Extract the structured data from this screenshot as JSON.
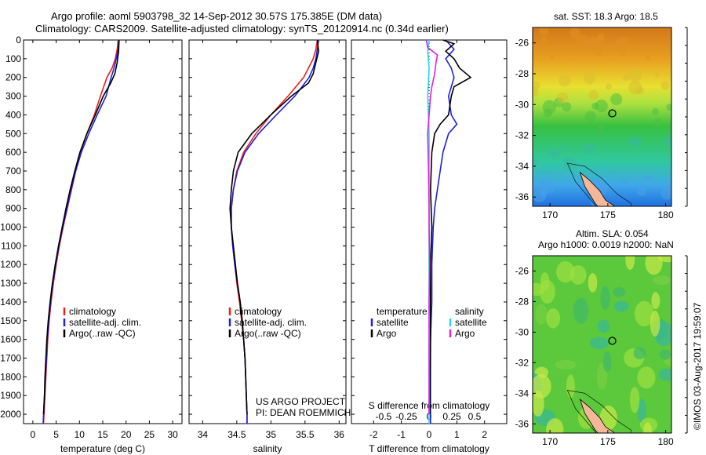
{
  "title_line1": "Argo profile: aoml 5903798_32 14-Sep-2012 30.57S 175.385E (DM data)",
  "title_line2": "Climatology: CARS2009. Satellite-adjusted climatology: synTS_20120914.nc (0.34d earlier)",
  "project_line1": "US ARGO PROJECT",
  "project_line2": "PI: DEAN ROEMMICH",
  "map1_title": "sat. SST: 18.3 Argo: 18.5",
  "map2_title1": "Altim. SLA: 0.054",
  "map2_title2": "Argo h1000: 0.0019 h2000: NaN",
  "credit": "©IMOS 03-Aug-2017 19:59:07",
  "colors": {
    "climatology": "#e8201c",
    "satellite": "#1c22e0",
    "argo": "#000000",
    "sal_sat": "#28d8e8",
    "sal_argo": "#e020e0"
  },
  "chart_data": [
    {
      "type": "line",
      "name": "temperature",
      "xlabel": "temperature (deg C)",
      "xlim": [
        -2,
        32
      ],
      "xticks": [
        0,
        5,
        10,
        15,
        20,
        25,
        30
      ],
      "ylim": [
        0,
        2050
      ],
      "yticks": [
        0,
        100,
        200,
        300,
        400,
        500,
        600,
        700,
        800,
        900,
        1000,
        1100,
        1200,
        1300,
        1400,
        1500,
        1600,
        1700,
        1800,
        1900,
        2000
      ],
      "y_inverted": true,
      "legend": [
        "climatology",
        "satellite-adj. clim.",
        "Argo(..raw -QC)"
      ],
      "series": [
        {
          "name": "climatology",
          "color": "#e8201c",
          "points": [
            [
              18.3,
              0
            ],
            [
              18.1,
              50
            ],
            [
              17.7,
              100
            ],
            [
              17.0,
              150
            ],
            [
              15.9,
              200
            ],
            [
              14.5,
              300
            ],
            [
              13.2,
              400
            ],
            [
              11.6,
              500
            ],
            [
              10.2,
              600
            ],
            [
              9.2,
              700
            ],
            [
              8.3,
              800
            ],
            [
              7.4,
              900
            ],
            [
              6.5,
              1000
            ],
            [
              5.7,
              1100
            ],
            [
              5.0,
              1200
            ],
            [
              4.4,
              1300
            ],
            [
              3.9,
              1400
            ],
            [
              3.5,
              1500
            ],
            [
              3.2,
              1600
            ],
            [
              3.0,
              1700
            ],
            [
              2.8,
              1800
            ],
            [
              2.6,
              1900
            ],
            [
              2.4,
              2000
            ],
            [
              2.3,
              2050
            ]
          ]
        },
        {
          "name": "satellite-adj. clim.",
          "color": "#1c22e0",
          "points": [
            [
              18.5,
              0
            ],
            [
              18.3,
              50
            ],
            [
              17.9,
              100
            ],
            [
              17.4,
              150
            ],
            [
              16.8,
              200
            ],
            [
              15.7,
              300
            ],
            [
              13.8,
              400
            ],
            [
              12.0,
              500
            ],
            [
              10.4,
              600
            ],
            [
              9.2,
              700
            ],
            [
              8.2,
              800
            ],
            [
              7.3,
              900
            ],
            [
              6.4,
              1000
            ],
            [
              5.6,
              1100
            ],
            [
              4.9,
              1200
            ],
            [
              4.3,
              1300
            ],
            [
              3.8,
              1400
            ],
            [
              3.4,
              1500
            ],
            [
              3.1,
              1600
            ],
            [
              2.9,
              1700
            ],
            [
              2.7,
              1800
            ],
            [
              2.5,
              1900
            ],
            [
              2.3,
              2000
            ],
            [
              2.2,
              2050
            ]
          ]
        },
        {
          "name": "Argo(..raw -QC)",
          "color": "#000000",
          "points": [
            [
              18.5,
              0
            ],
            [
              18.4,
              60
            ],
            [
              18.1,
              120
            ],
            [
              17.6,
              180
            ],
            [
              16.7,
              230
            ],
            [
              15.1,
              300
            ],
            [
              13.4,
              400
            ],
            [
              11.6,
              500
            ],
            [
              10.1,
              600
            ],
            [
              9.0,
              700
            ],
            [
              8.0,
              800
            ],
            [
              7.1,
              900
            ],
            [
              6.3,
              1000
            ],
            [
              5.5,
              1100
            ],
            [
              4.8,
              1200
            ],
            [
              4.2,
              1300
            ],
            [
              3.7,
              1400
            ],
            [
              3.3,
              1500
            ],
            [
              3.0,
              1600
            ],
            [
              2.8,
              1700
            ],
            [
              2.6,
              1800
            ],
            [
              2.5,
              1900
            ],
            [
              2.3,
              2000
            ]
          ]
        }
      ]
    },
    {
      "type": "line",
      "name": "salinity",
      "xlabel": "salinity",
      "xlim": [
        33.8,
        36.1
      ],
      "xticks": [
        34,
        34.5,
        35,
        35.5,
        36
      ],
      "ylim": [
        0,
        2050
      ],
      "y_inverted": true,
      "legend": [
        "climatology",
        "satellite-adj. clim.",
        "Argo(..raw -QC)"
      ],
      "series": [
        {
          "name": "climatology",
          "color": "#e8201c",
          "points": [
            [
              35.68,
              0
            ],
            [
              35.66,
              50
            ],
            [
              35.62,
              100
            ],
            [
              35.55,
              150
            ],
            [
              35.48,
              200
            ],
            [
              35.25,
              300
            ],
            [
              35.0,
              400
            ],
            [
              34.78,
              500
            ],
            [
              34.6,
              600
            ],
            [
              34.5,
              700
            ],
            [
              34.45,
              800
            ],
            [
              34.42,
              900
            ],
            [
              34.42,
              1000
            ],
            [
              34.44,
              1100
            ],
            [
              34.47,
              1200
            ],
            [
              34.5,
              1300
            ],
            [
              34.54,
              1400
            ],
            [
              34.57,
              1500
            ],
            [
              34.6,
              1600
            ],
            [
              34.62,
              1700
            ],
            [
              34.63,
              1800
            ],
            [
              34.64,
              1900
            ],
            [
              34.65,
              2000
            ],
            [
              34.65,
              2050
            ]
          ]
        },
        {
          "name": "satellite-adj. clim.",
          "color": "#1c22e0",
          "points": [
            [
              35.7,
              0
            ],
            [
              35.68,
              50
            ],
            [
              35.66,
              100
            ],
            [
              35.62,
              150
            ],
            [
              35.56,
              200
            ],
            [
              35.35,
              300
            ],
            [
              35.08,
              400
            ],
            [
              34.82,
              500
            ],
            [
              34.62,
              600
            ],
            [
              34.51,
              700
            ],
            [
              34.45,
              800
            ],
            [
              34.42,
              900
            ],
            [
              34.42,
              1000
            ],
            [
              34.44,
              1100
            ],
            [
              34.47,
              1200
            ],
            [
              34.51,
              1300
            ],
            [
              34.55,
              1400
            ],
            [
              34.58,
              1500
            ],
            [
              34.6,
              1600
            ],
            [
              34.62,
              1700
            ],
            [
              34.63,
              1800
            ],
            [
              34.64,
              1900
            ],
            [
              34.65,
              2000
            ],
            [
              34.65,
              2050
            ]
          ]
        },
        {
          "name": "Argo(..raw -QC)",
          "color": "#000000",
          "points": [
            [
              35.68,
              0
            ],
            [
              35.7,
              60
            ],
            [
              35.66,
              120
            ],
            [
              35.62,
              180
            ],
            [
              35.55,
              230
            ],
            [
              35.3,
              300
            ],
            [
              35.0,
              400
            ],
            [
              34.72,
              500
            ],
            [
              34.52,
              600
            ],
            [
              34.45,
              700
            ],
            [
              34.42,
              800
            ],
            [
              34.4,
              900
            ],
            [
              34.42,
              1000
            ],
            [
              34.45,
              1100
            ],
            [
              34.48,
              1200
            ],
            [
              34.51,
              1300
            ],
            [
              34.55,
              1400
            ],
            [
              34.58,
              1500
            ],
            [
              34.6,
              1600
            ],
            [
              34.62,
              1700
            ],
            [
              34.63,
              1800
            ],
            [
              34.64,
              1900
            ],
            [
              34.65,
              2000
            ]
          ]
        }
      ]
    },
    {
      "type": "line",
      "name": "difference",
      "xlabel": "T difference from climatology",
      "xlabel_top": "S difference from climatology",
      "xlim": [
        -2.8,
        2.8
      ],
      "xticks": [
        -2,
        -1,
        0,
        1,
        2
      ],
      "xticks_top": [
        -0.5,
        -0.25,
        0,
        0.25,
        0.5
      ],
      "ylim": [
        0,
        2050
      ],
      "y_inverted": true,
      "legend_left_title": "temperature",
      "legend_right_title": "salinity",
      "legend": [
        "satellite",
        "Argo",
        "satellite",
        "Argo"
      ],
      "series": [
        {
          "name": "T satellite",
          "color": "#1c22e0",
          "points": [
            [
              0.6,
              0
            ],
            [
              0.9,
              50
            ],
            [
              0.6,
              100
            ],
            [
              0.8,
              150
            ],
            [
              0.9,
              200
            ],
            [
              0.7,
              300
            ],
            [
              0.8,
              400
            ],
            [
              1.0,
              450
            ],
            [
              0.7,
              500
            ],
            [
              0.5,
              600
            ],
            [
              0.4,
              700
            ],
            [
              0.3,
              800
            ],
            [
              0.2,
              900
            ],
            [
              0.15,
              1000
            ],
            [
              0.1,
              1200
            ],
            [
              0.1,
              1400
            ],
            [
              0.05,
              1600
            ],
            [
              0.05,
              1800
            ],
            [
              0.05,
              2000
            ],
            [
              0.05,
              2050
            ]
          ]
        },
        {
          "name": "T Argo",
          "color": "#000000",
          "points": [
            [
              0.5,
              0
            ],
            [
              0.9,
              20
            ],
            [
              0.6,
              60
            ],
            [
              0.9,
              100
            ],
            [
              1.1,
              150
            ],
            [
              1.5,
              200
            ],
            [
              0.9,
              250
            ],
            [
              0.8,
              300
            ],
            [
              0.7,
              400
            ],
            [
              0.4,
              450
            ],
            [
              0.2,
              500
            ],
            [
              0.1,
              600
            ],
            [
              0.05,
              800
            ],
            [
              0.1,
              1000
            ],
            [
              0.05,
              1200
            ],
            [
              0.05,
              1400
            ],
            [
              0.05,
              1600
            ],
            [
              0.03,
              1800
            ],
            [
              0.03,
              2000
            ]
          ]
        },
        {
          "name": "S satellite",
          "color": "#28d8e8",
          "points": [
            [
              0.0,
              0
            ],
            [
              -0.05,
              60
            ],
            [
              0.0,
              150
            ],
            [
              -0.05,
              300
            ],
            [
              0.0,
              500
            ],
            [
              0.0,
              700
            ],
            [
              0.0,
              900
            ],
            [
              0.0,
              1100
            ],
            [
              0.0,
              1300
            ],
            [
              0.0,
              1500
            ],
            [
              0.0,
              1700
            ],
            [
              0.0,
              1900
            ],
            [
              0.0,
              2050
            ]
          ]
        },
        {
          "name": "S Argo",
          "color": "#e020e0",
          "points": [
            [
              -0.1,
              0
            ],
            [
              -0.05,
              40
            ],
            [
              0.3,
              80
            ],
            [
              0.25,
              120
            ],
            [
              0.2,
              180
            ],
            [
              0.1,
              250
            ],
            [
              0.05,
              300
            ],
            [
              0.0,
              400
            ],
            [
              -0.05,
              500
            ],
            [
              -0.02,
              700
            ],
            [
              0.0,
              900
            ],
            [
              0.0,
              1000
            ],
            [
              0.02,
              1200
            ],
            [
              0.0,
              1400
            ],
            [
              0.0,
              1600
            ],
            [
              0.0,
              1800
            ],
            [
              0.0,
              2000
            ]
          ]
        }
      ]
    },
    {
      "type": "heatmap",
      "name": "sst map",
      "xticks": [
        170,
        175,
        180
      ],
      "yticks": [
        -26,
        -28,
        -30,
        -32,
        -34,
        -36
      ],
      "xlim": [
        168.5,
        180.5
      ],
      "ylim": [
        -36.6,
        -25.0
      ],
      "float_position": [
        175.385,
        -30.57
      ]
    },
    {
      "type": "heatmap",
      "name": "sla map",
      "xticks": [
        170,
        175,
        180
      ],
      "yticks": [
        -26,
        -28,
        -30,
        -32,
        -34,
        -36
      ],
      "xlim": [
        168.5,
        180.5
      ],
      "ylim": [
        -36.6,
        -25.0
      ],
      "float_position": [
        175.385,
        -30.57
      ]
    }
  ]
}
